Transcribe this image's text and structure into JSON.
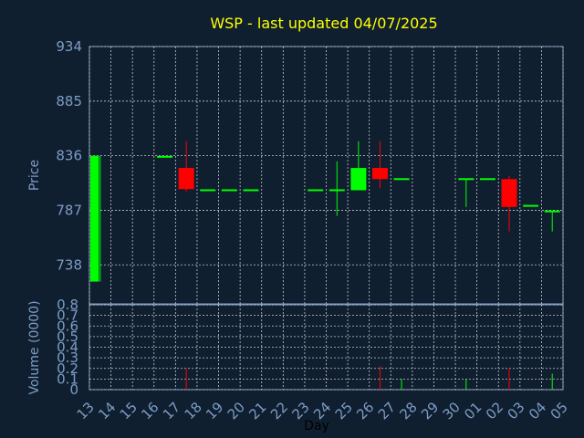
{
  "chart_data": {
    "type": "candlestick",
    "title": "WSP - last updated 04/07/2025",
    "xlabel": "Day",
    "ylabel_price": "Price",
    "ylabel_volume": "Volume (0000)",
    "days": [
      "13",
      "14",
      "15",
      "16",
      "17",
      "18",
      "19",
      "20",
      "21",
      "22",
      "23",
      "24",
      "25",
      "26",
      "27",
      "28",
      "29",
      "30",
      "01",
      "02",
      "03",
      "04",
      "05"
    ],
    "price_ticks": [
      934,
      885,
      836,
      787,
      738
    ],
    "price_range": [
      703,
      934
    ],
    "volume_ticks": [
      "0.8",
      "0.7",
      "0.6",
      "0.5",
      "0.4",
      "0.3",
      "0.2",
      "0.1",
      "0"
    ],
    "volume_range": [
      0,
      0.8
    ],
    "candles": [
      {
        "day": "13",
        "open": 723,
        "high": 836,
        "low": 723,
        "close": 836,
        "volume": 0
      },
      {
        "day": "16",
        "open": 835,
        "high": 835,
        "low": 835,
        "close": 835,
        "volume": 0
      },
      {
        "day": "17",
        "open": 825,
        "high": 849,
        "low": 804,
        "close": 806,
        "volume": 0.2
      },
      {
        "day": "18",
        "open": 805,
        "high": 805,
        "low": 805,
        "close": 805,
        "volume": 0
      },
      {
        "day": "19",
        "open": 805,
        "high": 805,
        "low": 805,
        "close": 805,
        "volume": 0
      },
      {
        "day": "20",
        "open": 805,
        "high": 805,
        "low": 805,
        "close": 805,
        "volume": 0
      },
      {
        "day": "23",
        "open": 805,
        "high": 805,
        "low": 805,
        "close": 805,
        "volume": 0
      },
      {
        "day": "24",
        "open": 805,
        "high": 831,
        "low": 782,
        "close": 805,
        "volume": 0
      },
      {
        "day": "25",
        "open": 805,
        "high": 849,
        "low": 805,
        "close": 825,
        "volume": 0
      },
      {
        "day": "26",
        "open": 825,
        "high": 849,
        "low": 807,
        "close": 815,
        "volume": 0.22
      },
      {
        "day": "27",
        "open": 815,
        "high": 815,
        "low": 815,
        "close": 815,
        "volume": 0.1
      },
      {
        "day": "30",
        "open": 815,
        "high": 815,
        "low": 790,
        "close": 815,
        "volume": 0.1
      },
      {
        "day": "01",
        "open": 815,
        "high": 815,
        "low": 815,
        "close": 815,
        "volume": 0
      },
      {
        "day": "02",
        "open": 815,
        "high": 818,
        "low": 768,
        "close": 790,
        "volume": 0.2
      },
      {
        "day": "03",
        "open": 791,
        "high": 791,
        "low": 791,
        "close": 791,
        "volume": 0
      },
      {
        "day": "04",
        "open": 786,
        "high": 786,
        "low": 768,
        "close": 786,
        "volume": 0.15
      }
    ]
  },
  "colors": {
    "background": "#0f1f30",
    "title": "#ffff00",
    "axis_text": "#7c9cc4",
    "grid": "#c8c8c8",
    "up": "#00ff00",
    "down": "#ff0000"
  }
}
